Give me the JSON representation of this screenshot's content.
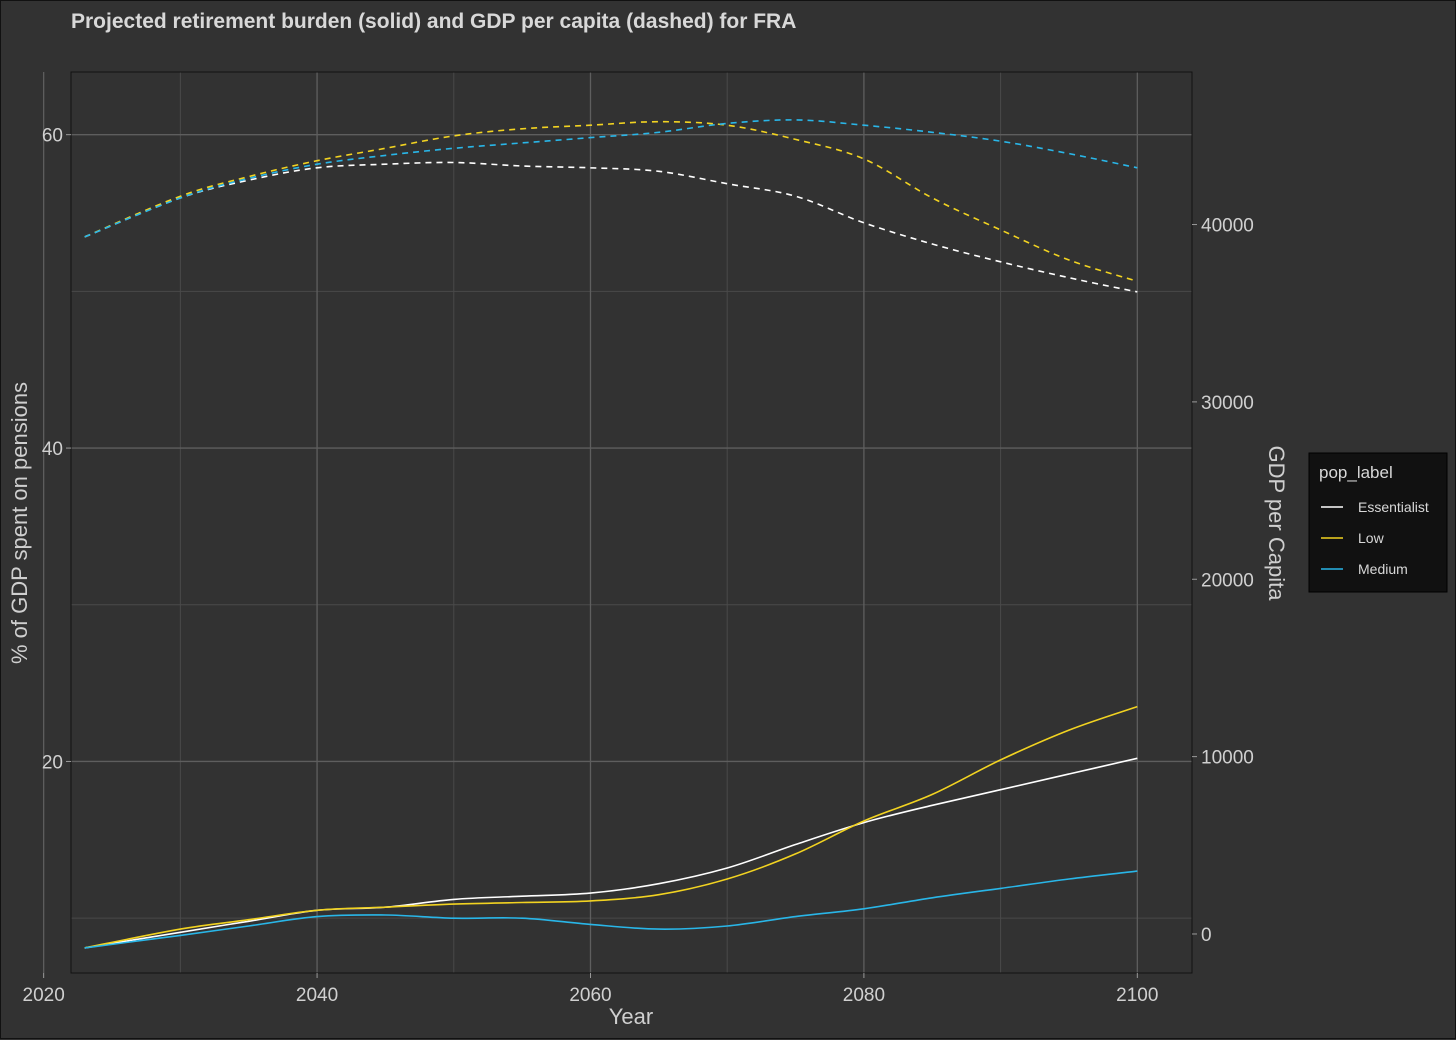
{
  "chart_data": {
    "type": "line",
    "title": "Projected retirement burden (solid) and GDP per capita (dashed) for FRA",
    "xlabel": "Year",
    "ylabel": "% of GDP spent on pensions",
    "ylabel_right": "GDP per Capita",
    "xlim": [
      2022,
      2104
    ],
    "ylim": [
      6.5,
      64
    ],
    "ylim_right": [
      -2200,
      48600
    ],
    "x_ticks": [
      2020,
      2040,
      2060,
      2080,
      2100
    ],
    "x_tick_labels": [
      "2020",
      "2040",
      "2060",
      "2080",
      "2100"
    ],
    "y_ticks": [
      20,
      40,
      60
    ],
    "y_tick_labels": [
      "20",
      "40",
      "60"
    ],
    "y_right_ticks": [
      0,
      10000,
      20000,
      30000,
      40000
    ],
    "y_right_tick_labels": [
      "0",
      "10000",
      "20000",
      "30000",
      "40000"
    ],
    "legend": {
      "title": "pop_label",
      "placement": "right"
    },
    "series": [
      {
        "name": "Essentialist",
        "color": "#ffffff",
        "style": "solid",
        "axis": "left",
        "x": [
          2023,
          2030,
          2035,
          2040,
          2045,
          2050,
          2055,
          2060,
          2065,
          2070,
          2075,
          2080,
          2085,
          2090,
          2095,
          2100
        ],
        "y": [
          8.1,
          9.1,
          9.8,
          10.5,
          10.7,
          11.2,
          11.4,
          11.6,
          12.2,
          13.2,
          14.7,
          16.1,
          17.2,
          18.2,
          19.2,
          20.2
        ]
      },
      {
        "name": "Low",
        "color": "#f2d321",
        "style": "solid",
        "axis": "left",
        "x": [
          2023,
          2030,
          2035,
          2040,
          2045,
          2050,
          2055,
          2060,
          2065,
          2070,
          2075,
          2080,
          2085,
          2090,
          2095,
          2100
        ],
        "y": [
          8.1,
          9.3,
          9.9,
          10.5,
          10.7,
          10.9,
          11.0,
          11.1,
          11.5,
          12.5,
          14.1,
          16.2,
          17.9,
          20.1,
          22.0,
          23.5
        ]
      },
      {
        "name": "Medium",
        "color": "#29b6e8",
        "style": "solid",
        "axis": "left",
        "x": [
          2023,
          2030,
          2035,
          2040,
          2045,
          2050,
          2055,
          2060,
          2065,
          2070,
          2075,
          2080,
          2085,
          2090,
          2095,
          2100
        ],
        "y": [
          8.1,
          8.9,
          9.5,
          10.1,
          10.2,
          10.0,
          10.0,
          9.6,
          9.3,
          9.5,
          10.1,
          10.6,
          11.3,
          11.9,
          12.5,
          13.0
        ]
      },
      {
        "name": "Essentialist",
        "color": "#ffffff",
        "style": "dashed",
        "axis": "right",
        "x": [
          2023,
          2030,
          2035,
          2040,
          2045,
          2050,
          2055,
          2060,
          2065,
          2070,
          2075,
          2080,
          2085,
          2090,
          2095,
          2100
        ],
        "y": [
          39300,
          41500,
          42500,
          43200,
          43400,
          43500,
          43300,
          43200,
          43000,
          42300,
          41600,
          40100,
          38900,
          37900,
          37000,
          36200
        ]
      },
      {
        "name": "Low",
        "color": "#f2d321",
        "style": "dashed",
        "axis": "right",
        "x": [
          2023,
          2030,
          2035,
          2040,
          2045,
          2050,
          2055,
          2060,
          2065,
          2070,
          2075,
          2080,
          2085,
          2090,
          2095,
          2100
        ],
        "y": [
          39300,
          41600,
          42700,
          43600,
          44300,
          45000,
          45400,
          45600,
          45800,
          45600,
          44800,
          43700,
          41500,
          39700,
          38000,
          36800
        ]
      },
      {
        "name": "Medium",
        "color": "#29b6e8",
        "style": "dashed",
        "axis": "right",
        "x": [
          2023,
          2030,
          2035,
          2040,
          2045,
          2050,
          2055,
          2060,
          2065,
          2070,
          2075,
          2080,
          2085,
          2090,
          2095,
          2100
        ],
        "y": [
          39300,
          41500,
          42600,
          43400,
          43900,
          44300,
          44600,
          44900,
          45200,
          45700,
          45900,
          45600,
          45200,
          44700,
          44000,
          43200
        ]
      }
    ]
  }
}
